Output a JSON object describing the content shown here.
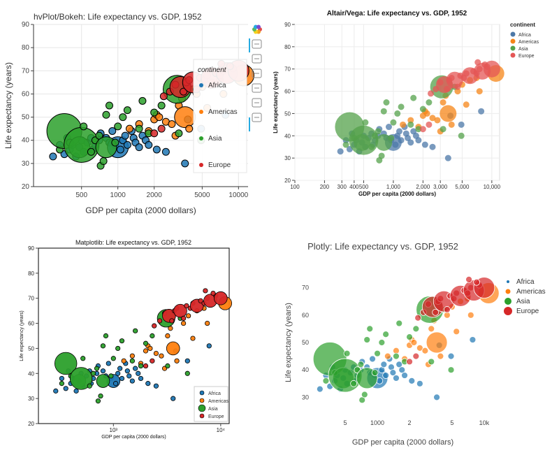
{
  "series_names": [
    "Africa",
    "Americas",
    "Asia",
    "Europe"
  ],
  "panels": [
    {
      "title": "hvPlot/Bokeh: Life expectancy vs. GDP, 1952",
      "xlabel": "GDP per capita (2000 dollars)",
      "ylabel": "Life expectancy (years)",
      "xticks": [
        "500",
        "1000",
        "2000",
        "5000",
        "10000"
      ],
      "yticks": [
        "20",
        "30",
        "40",
        "50",
        "60",
        "70",
        "80",
        "90"
      ],
      "legend_title": "continent",
      "toolbar": [
        "bokeh-logo-icon",
        "pan-icon",
        "box-zoom-icon",
        "wheel-zoom-icon",
        "save-icon",
        "reset-icon",
        "hover-icon"
      ]
    },
    {
      "title": "Altair/Vega: Life expectancy vs. GDP, 1952",
      "xlabel": "GDP per capita (2000 dollars)",
      "ylabel": "Life expectancy (years)",
      "xticks": [
        "100",
        "200",
        "300",
        "400",
        "500",
        "1,000",
        "2,000",
        "3,000",
        "5,000",
        "10,000"
      ],
      "yticks": [
        "20",
        "30",
        "40",
        "50",
        "60",
        "70",
        "80",
        "90"
      ],
      "legend_title": "continent"
    },
    {
      "title": "Matplotlib: Life expectancy vs. GDP, 1952",
      "xlabel": "GDP per capita (2000 dollars)",
      "ylabel": "Life expectancy (years)",
      "xticks": [
        "10³",
        "10⁴"
      ],
      "yticks": [
        "20",
        "30",
        "40",
        "50",
        "60",
        "70",
        "80",
        "90"
      ]
    },
    {
      "title": "Plotly: Life expectancy vs. GDP, 1952",
      "xlabel": "GDP per capita (2000 dollars)",
      "ylabel": "Life expectancy (years)",
      "xticks": [
        "5",
        "1000",
        "2",
        "5",
        "10k"
      ],
      "yticks": [
        "30",
        "40",
        "50",
        "60",
        "70"
      ]
    }
  ],
  "colors": {
    "bokeh": [
      "#1f77b4",
      "#ff7f0e",
      "#2ca02c",
      "#d62728"
    ],
    "altair": [
      "#4c78a8",
      "#f58518",
      "#54a24b",
      "#e45756"
    ],
    "matplotlib": [
      "#1f77b4",
      "#ff7f0e",
      "#2ca02c",
      "#d62728"
    ],
    "plotly": [
      "#1f77b4",
      "#ff7f0e",
      "#2ca02c",
      "#d62728"
    ]
  },
  "chart_data": [
    {
      "type": "scatter",
      "title": "Life expectancy vs. GDP, 1952",
      "x_scale": "log",
      "xlim": [
        120,
        12000
      ],
      "ylim": [
        20,
        90
      ],
      "size_encodes": "population",
      "series": [
        {
          "name": "Africa",
          "points": [
            [
              290,
              33,
              1
            ],
            [
              330,
              38,
              1
            ],
            [
              360,
              34,
              1
            ],
            [
              380,
              41,
              1
            ],
            [
              400,
              36,
              1
            ],
            [
              420,
              38,
              1
            ],
            [
              450,
              33,
              1
            ],
            [
              480,
              37,
              1
            ],
            [
              500,
              40,
              1
            ],
            [
              520,
              35,
              1
            ],
            [
              560,
              39,
              1
            ],
            [
              600,
              41,
              1
            ],
            [
              620,
              36,
              1
            ],
            [
              650,
              38,
              1
            ],
            [
              700,
              40,
              1
            ],
            [
              720,
              43,
              1
            ],
            [
              800,
              41,
              1
            ],
            [
              850,
              39,
              1
            ],
            [
              900,
              44,
              1
            ],
            [
              950,
              38,
              1
            ],
            [
              1000,
              37,
              2
            ],
            [
              1050,
              36,
              1
            ],
            [
              1100,
              40,
              1
            ],
            [
              1150,
              42,
              1
            ],
            [
              1200,
              38,
              1
            ],
            [
              1300,
              44,
              1
            ],
            [
              1350,
              41,
              1
            ],
            [
              1400,
              39,
              1
            ],
            [
              1500,
              37,
              1
            ],
            [
              1600,
              42,
              1
            ],
            [
              1700,
              40,
              1
            ],
            [
              1800,
              38,
              1
            ],
            [
              2100,
              36,
              1
            ],
            [
              2500,
              35,
              1
            ],
            [
              3600,
              30,
              1
            ],
            [
              3800,
              49,
              1
            ],
            [
              7800,
              51,
              1
            ],
            [
              4900,
              45,
              1
            ]
          ]
        },
        {
          "name": "Americas",
          "points": [
            [
              1250,
              45,
              1
            ],
            [
              1500,
              47,
              1
            ],
            [
              1800,
              44,
              1
            ],
            [
              2000,
              49,
              1
            ],
            [
              2100,
              51,
              1
            ],
            [
              2200,
              50,
              1
            ],
            [
              2500,
              48,
              1
            ],
            [
              2800,
              47,
              1
            ],
            [
              3000,
              42,
              1
            ],
            [
              3200,
              55,
              1
            ],
            [
              3400,
              58,
              1
            ],
            [
              3600,
              50,
              2
            ],
            [
              3900,
              45,
              1
            ],
            [
              4500,
              60,
              1
            ],
            [
              5000,
              63,
              1
            ],
            [
              5500,
              54,
              1
            ],
            [
              6000,
              65,
              1
            ],
            [
              7000,
              66,
              1
            ],
            [
              7500,
              60,
              1
            ],
            [
              11000,
              68,
              2
            ]
          ]
        },
        {
          "name": "Asia",
          "points": [
            [
              330,
              36,
              1
            ],
            [
              360,
              44,
              4
            ],
            [
              400,
              39,
              1
            ],
            [
              480,
              37,
              2
            ],
            [
              500,
              38,
              4
            ],
            [
              520,
              46,
              1
            ],
            [
              600,
              35,
              1
            ],
            [
              650,
              40,
              1
            ],
            [
              700,
              42,
              1
            ],
            [
              720,
              29,
              1
            ],
            [
              760,
              31,
              1
            ],
            [
              800,
              37,
              2
            ],
            [
              800,
              51,
              1
            ],
            [
              850,
              55,
              1
            ],
            [
              950,
              39,
              1
            ],
            [
              1000,
              46,
              1
            ],
            [
              1100,
              50,
              1
            ],
            [
              1200,
              53,
              1
            ],
            [
              1500,
              45,
              1
            ],
            [
              1600,
              57,
              1
            ],
            [
              1800,
              43,
              1
            ],
            [
              2000,
              52,
              1
            ],
            [
              2300,
              55,
              1
            ],
            [
              3100,
              62,
              3
            ],
            [
              3200,
              43,
              1
            ],
            [
              4200,
              62,
              1
            ],
            [
              4900,
              40,
              1
            ]
          ]
        },
        {
          "name": "Europe",
          "points": [
            [
              2000,
              43,
              1
            ],
            [
              2300,
              45,
              1
            ],
            [
              2400,
              59,
              1
            ],
            [
              2700,
              61,
              1
            ],
            [
              3000,
              64,
              1
            ],
            [
              3300,
              63,
              2
            ],
            [
              3500,
              61,
              1
            ],
            [
              3700,
              65,
              1
            ],
            [
              3900,
              66,
              1
            ],
            [
              4200,
              65,
              2
            ],
            [
              4500,
              62,
              1
            ],
            [
              4800,
              67,
              1
            ],
            [
              5200,
              66,
              1
            ],
            [
              5500,
              68,
              1
            ],
            [
              6000,
              67,
              2
            ],
            [
              6500,
              69,
              1
            ],
            [
              7000,
              68,
              1
            ],
            [
              7500,
              70,
              1
            ],
            [
              8000,
              69,
              2
            ],
            [
              9000,
              71,
              1
            ],
            [
              10000,
              70,
              2
            ],
            [
              8500,
              72,
              1
            ],
            [
              7200,
              73,
              1
            ]
          ]
        }
      ]
    }
  ]
}
